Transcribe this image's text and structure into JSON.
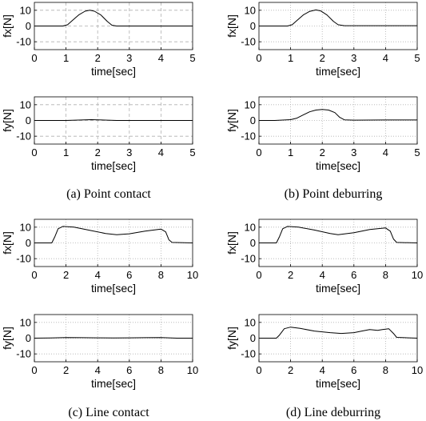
{
  "chart_data": [
    {
      "type": "line",
      "ylabel": "fx[N]",
      "xlabel": "time[sec]",
      "xlim": [
        0,
        5
      ],
      "ylim": [
        -15,
        15
      ],
      "xticks": [
        0,
        1,
        2,
        3,
        4,
        5
      ],
      "yticks": [
        10,
        0,
        -10
      ],
      "grid": "dashed",
      "x": [
        0,
        0.9,
        1.05,
        1.2,
        1.4,
        1.6,
        1.75,
        1.9,
        2.1,
        2.3,
        2.45,
        2.6,
        5
      ],
      "y": [
        0,
        0,
        0.8,
        3.5,
        7,
        9.4,
        10,
        9.4,
        7,
        3,
        0.5,
        0,
        0
      ]
    },
    {
      "type": "line",
      "ylabel": "fx[N]",
      "xlabel": "time[sec]",
      "xlim": [
        0,
        5
      ],
      "ylim": [
        -15,
        15
      ],
      "xticks": [
        0,
        1,
        2,
        3,
        4,
        5
      ],
      "yticks": [
        10,
        0,
        -10
      ],
      "grid": "dotted",
      "x": [
        0,
        0.9,
        1.05,
        1.2,
        1.4,
        1.6,
        1.8,
        1.95,
        2.15,
        2.35,
        2.5,
        2.7,
        3,
        4,
        5
      ],
      "y": [
        0,
        0,
        0.8,
        3.5,
        7,
        9.3,
        10.2,
        9.6,
        7,
        3,
        0.8,
        0.2,
        0.2,
        0.2,
        0.2
      ]
    },
    {
      "type": "line",
      "ylabel": "fy[N]",
      "xlabel": "time[sec]",
      "xlim": [
        0,
        5
      ],
      "ylim": [
        -15,
        15
      ],
      "xticks": [
        0,
        1,
        2,
        3,
        4,
        5
      ],
      "yticks": [
        10,
        0,
        -10
      ],
      "grid": "dashed",
      "x": [
        0,
        1.0,
        1.3,
        1.6,
        1.8,
        2.0,
        2.3,
        2.6,
        5
      ],
      "y": [
        0,
        0,
        0.2,
        0.4,
        0.5,
        0.4,
        0.2,
        0,
        0
      ]
    },
    {
      "type": "line",
      "ylabel": "fy[N]",
      "xlabel": "time[sec]",
      "xlim": [
        0,
        5
      ],
      "ylim": [
        -15,
        15
      ],
      "xticks": [
        0,
        1,
        2,
        3,
        4,
        5
      ],
      "yticks": [
        10,
        0,
        -10
      ],
      "grid": "dotted",
      "x": [
        0,
        0.5,
        1.0,
        1.2,
        1.4,
        1.6,
        1.8,
        2.0,
        2.2,
        2.4,
        2.55,
        2.7,
        3,
        4,
        5
      ],
      "y": [
        0,
        0,
        0.5,
        1.5,
        3.5,
        5.5,
        6.6,
        7,
        6.6,
        5,
        2,
        0.4,
        0.2,
        0.3,
        0.3
      ]
    },
    {
      "type": "line",
      "ylabel": "fx[N]",
      "xlabel": "time[sec]",
      "xlim": [
        0,
        10
      ],
      "ylim": [
        -15,
        15
      ],
      "xticks": [
        0,
        2,
        4,
        6,
        8,
        10
      ],
      "yticks": [
        10,
        0,
        -10
      ],
      "grid": "dotted",
      "x": [
        0,
        1.1,
        1.3,
        1.5,
        1.8,
        2.5,
        3.5,
        4.5,
        5.2,
        6,
        7,
        8,
        8.3,
        8.5,
        8.7,
        10
      ],
      "y": [
        0,
        0,
        4,
        9,
        10.5,
        10,
        8,
        6,
        5.2,
        5.8,
        7.5,
        8.8,
        7,
        2,
        0.3,
        0
      ]
    },
    {
      "type": "line",
      "ylabel": "fx[N]",
      "xlabel": "time[sec]",
      "xlim": [
        0,
        10
      ],
      "ylim": [
        -15,
        15
      ],
      "xticks": [
        0,
        2,
        4,
        6,
        8,
        10
      ],
      "yticks": [
        10,
        0,
        -10
      ],
      "grid": "dotted",
      "x": [
        0,
        1.1,
        1.3,
        1.5,
        1.8,
        2.5,
        3.5,
        4.5,
        5.0,
        6,
        7,
        8,
        8.3,
        8.5,
        8.7,
        10
      ],
      "y": [
        0,
        0,
        4,
        9,
        10.5,
        10,
        8.2,
        6,
        5.2,
        6.5,
        8.5,
        9.5,
        7.5,
        2.5,
        0.3,
        0
      ]
    },
    {
      "type": "line",
      "ylabel": "fy[N]",
      "xlabel": "time[sec]",
      "xlim": [
        0,
        10
      ],
      "ylim": [
        -15,
        15
      ],
      "xticks": [
        0,
        2,
        4,
        6,
        8,
        10
      ],
      "yticks": [
        10,
        0,
        -10
      ],
      "grid": "dotted",
      "x": [
        0,
        1,
        2,
        3,
        4,
        5,
        6,
        7,
        8,
        9,
        10
      ],
      "y": [
        0,
        0.1,
        0.4,
        0.3,
        0.2,
        0.1,
        0.2,
        0.3,
        0.4,
        0,
        0
      ]
    },
    {
      "type": "line",
      "ylabel": "fy[N]",
      "xlabel": "time[sec]",
      "xlim": [
        0,
        10
      ],
      "ylim": [
        -15,
        15
      ],
      "xticks": [
        0,
        2,
        4,
        6,
        8,
        10
      ],
      "yticks": [
        10,
        0,
        -10
      ],
      "grid": "dotted",
      "x": [
        0,
        1.1,
        1.3,
        1.6,
        2.0,
        2.6,
        3.5,
        4.5,
        5.2,
        6,
        6.5,
        7,
        7.5,
        7.8,
        8.2,
        8.5,
        8.7,
        10
      ],
      "y": [
        0,
        0,
        2,
        6,
        7,
        6.2,
        4.5,
        3.5,
        3,
        3.5,
        4.5,
        5.5,
        5,
        5.5,
        6,
        3,
        0.5,
        0
      ]
    }
  ],
  "captions": [
    "(a) Point contact",
    "(b) Point deburring",
    "(c) Line contact",
    "(d) Line deburring"
  ]
}
